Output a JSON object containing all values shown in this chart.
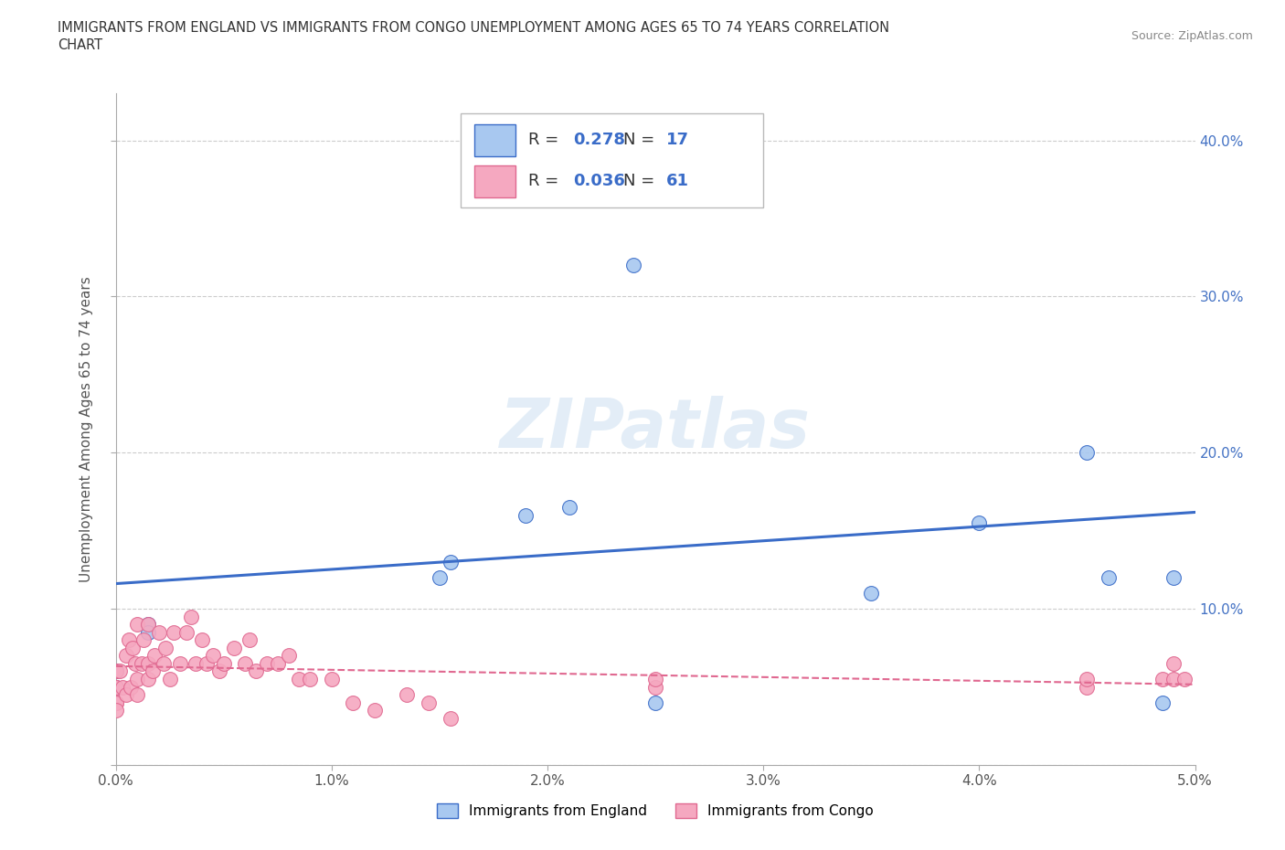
{
  "title_line1": "IMMIGRANTS FROM ENGLAND VS IMMIGRANTS FROM CONGO UNEMPLOYMENT AMONG AGES 65 TO 74 YEARS CORRELATION",
  "title_line2": "CHART",
  "source_text": "Source: ZipAtlas.com",
  "ylabel": "Unemployment Among Ages 65 to 74 years",
  "watermark": "ZIPatlas",
  "england_x": [
    0.0,
    0.0,
    0.15,
    0.15,
    1.5,
    1.55,
    1.9,
    2.1,
    2.4,
    2.5,
    2.5,
    3.5,
    4.0,
    4.5,
    4.6,
    4.85,
    4.9
  ],
  "england_y": [
    0.05,
    0.06,
    0.09,
    0.085,
    0.12,
    0.13,
    0.16,
    0.165,
    0.32,
    0.04,
    0.385,
    0.11,
    0.155,
    0.2,
    0.12,
    0.04,
    0.12
  ],
  "congo_x": [
    0.0,
    0.0,
    0.0,
    0.0,
    0.0,
    0.0,
    0.02,
    0.03,
    0.05,
    0.05,
    0.06,
    0.07,
    0.08,
    0.09,
    0.1,
    0.1,
    0.1,
    0.12,
    0.13,
    0.15,
    0.15,
    0.15,
    0.17,
    0.18,
    0.2,
    0.22,
    0.23,
    0.25,
    0.27,
    0.3,
    0.33,
    0.35,
    0.37,
    0.4,
    0.42,
    0.45,
    0.48,
    0.5,
    0.55,
    0.6,
    0.62,
    0.65,
    0.7,
    0.75,
    0.8,
    0.85,
    0.9,
    1.0,
    1.1,
    1.2,
    1.35,
    1.45,
    1.55,
    2.5,
    2.5,
    4.5,
    4.5,
    4.85,
    4.9,
    4.9,
    4.95
  ],
  "congo_y": [
    0.05,
    0.05,
    0.04,
    0.04,
    0.035,
    0.06,
    0.06,
    0.05,
    0.045,
    0.07,
    0.08,
    0.05,
    0.075,
    0.065,
    0.045,
    0.055,
    0.09,
    0.065,
    0.08,
    0.055,
    0.065,
    0.09,
    0.06,
    0.07,
    0.085,
    0.065,
    0.075,
    0.055,
    0.085,
    0.065,
    0.085,
    0.095,
    0.065,
    0.08,
    0.065,
    0.07,
    0.06,
    0.065,
    0.075,
    0.065,
    0.08,
    0.06,
    0.065,
    0.065,
    0.07,
    0.055,
    0.055,
    0.055,
    0.04,
    0.035,
    0.045,
    0.04,
    0.03,
    0.05,
    0.055,
    0.05,
    0.055,
    0.055,
    0.055,
    0.065,
    0.055
  ],
  "england_color": "#a8c8f0",
  "congo_color": "#f5a8c0",
  "england_line_color": "#3a6cc8",
  "congo_line_color": "#e06890",
  "england_R": "0.278",
  "england_N": "17",
  "congo_R": "0.036",
  "congo_N": "61",
  "xlim_min": 0.0,
  "xlim_max": 0.05,
  "ylim_min": 0.0,
  "ylim_max": 0.43,
  "xtick_vals": [
    0.0,
    0.01,
    0.02,
    0.03,
    0.04,
    0.05
  ],
  "ytick_vals": [
    0.0,
    0.1,
    0.2,
    0.3,
    0.4
  ],
  "xticklabels": [
    "0.0%",
    "1.0%",
    "2.0%",
    "3.0%",
    "4.0%",
    "5.0%"
  ],
  "yticklabels": [
    "",
    "10.0%",
    "20.0%",
    "30.0%",
    "40.0%"
  ],
  "background_color": "#ffffff",
  "grid_color": "#cccccc"
}
